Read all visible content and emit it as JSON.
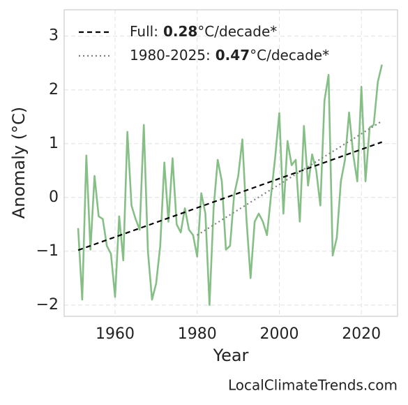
{
  "chart_data": {
    "type": "line",
    "xlabel": "Year",
    "ylabel": "Anomaly (°C)",
    "footer": "LocalClimateTrends.com",
    "x": [
      1951,
      1952,
      1953,
      1954,
      1955,
      1956,
      1957,
      1958,
      1959,
      1960,
      1961,
      1962,
      1963,
      1964,
      1965,
      1966,
      1967,
      1968,
      1969,
      1970,
      1971,
      1972,
      1973,
      1974,
      1975,
      1976,
      1977,
      1978,
      1979,
      1980,
      1981,
      1982,
      1983,
      1984,
      1985,
      1986,
      1987,
      1988,
      1989,
      1990,
      1991,
      1992,
      1993,
      1994,
      1995,
      1996,
      1997,
      1998,
      1999,
      2000,
      2001,
      2002,
      2003,
      2004,
      2005,
      2006,
      2007,
      2008,
      2009,
      2010,
      2011,
      2012,
      2013,
      2014,
      2015,
      2016,
      2017,
      2018,
      2019,
      2020,
      2021,
      2022,
      2023,
      2024,
      2025
    ],
    "values": [
      -0.57,
      -1.9,
      0.78,
      -0.97,
      0.4,
      -0.35,
      -0.4,
      -0.9,
      -1.05,
      -1.85,
      -0.35,
      -1.17,
      1.22,
      -0.15,
      -0.4,
      -0.6,
      1.35,
      -1.0,
      -1.9,
      -1.6,
      -0.9,
      0.65,
      -0.45,
      0.73,
      -0.5,
      -0.65,
      -0.2,
      -0.6,
      -0.7,
      -1.1,
      0.08,
      -0.3,
      -2.0,
      -0.2,
      0.7,
      0.3,
      -0.97,
      -0.9,
      0.05,
      0.4,
      1.08,
      -0.4,
      -1.5,
      -0.45,
      -0.3,
      -0.45,
      -0.7,
      0.05,
      0.75,
      1.57,
      -0.3,
      1.05,
      0.6,
      0.7,
      -0.45,
      1.33,
      0.22,
      0.8,
      0.5,
      -0.15,
      1.8,
      2.28,
      -1.08,
      -0.75,
      0.3,
      0.7,
      1.58,
      0.8,
      0.3,
      2.06,
      0.3,
      1.3,
      1.35,
      2.15,
      2.47
    ],
    "color": "#86bf86",
    "trends": [
      {
        "label": "Full:",
        "rate": 0.28,
        "unit": "°C/decade*",
        "x": [
          1951,
          2025
        ],
        "values": [
          -0.98,
          1.03
        ],
        "color": "#000000",
        "dash": "7,5"
      },
      {
        "label": "1980-2025:",
        "rate": 0.47,
        "unit": "°C/decade*",
        "x": [
          1980,
          2025
        ],
        "values": [
          -0.7,
          1.42
        ],
        "color": "#808080",
        "dash": "2,4"
      }
    ],
    "xlim": [
      1947.6,
      2028.8
    ],
    "ylim": [
      -2.21,
      3.49
    ],
    "xticks": [
      1960,
      1980,
      2000,
      2020
    ],
    "yticks": [
      {
        "value": -2,
        "label": "−2"
      },
      {
        "value": -1,
        "label": "−1"
      },
      0,
      1,
      2,
      3
    ],
    "grid": true,
    "legend": "upper left"
  }
}
